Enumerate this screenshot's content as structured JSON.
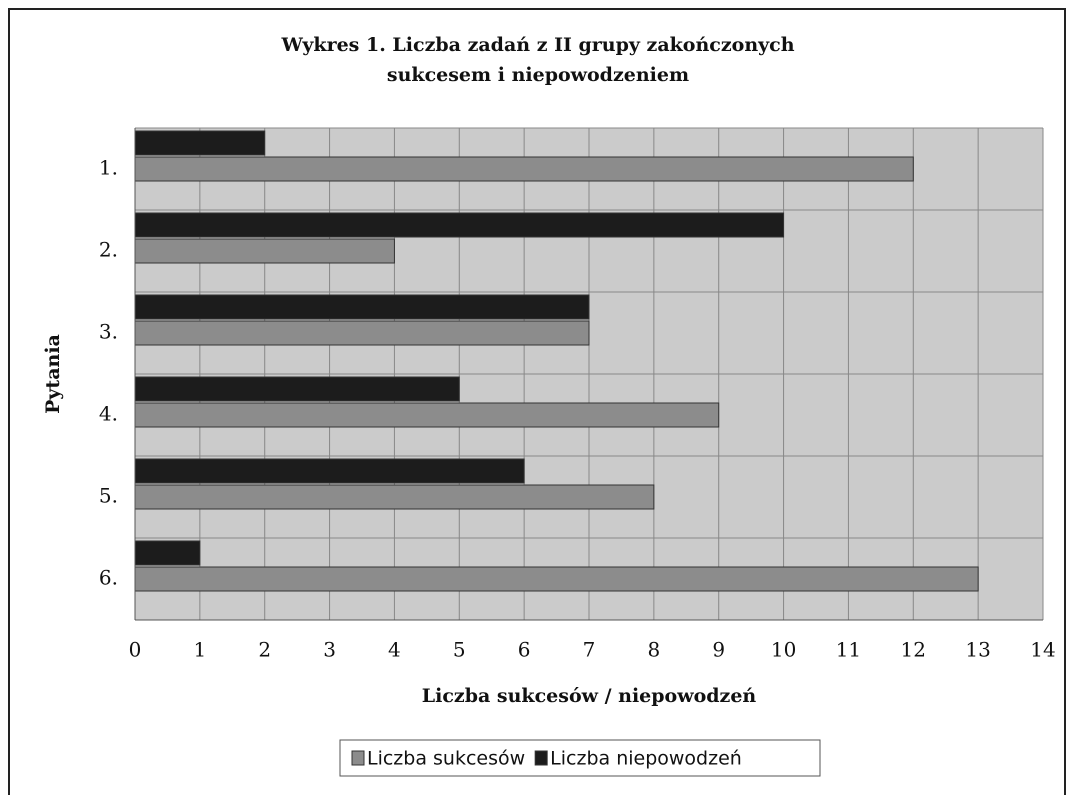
{
  "chart_data": {
    "type": "barh",
    "title": "Wykres 1. Liczba zadań z II grupy zakończonych sukcesem i niepowodzeniem",
    "xlabel": "Liczba sukcesów / niepowodzeń",
    "ylabel": "Pytania",
    "categories": [
      "1.",
      "2.",
      "3.",
      "4.",
      "5.",
      "6."
    ],
    "series": [
      {
        "name": "Liczba sukcesów",
        "color": "#8c8c8c",
        "values": [
          12,
          4,
          7,
          9,
          8,
          13
        ]
      },
      {
        "name": "Liczba niepowodzeń",
        "color": "#1c1c1c",
        "values": [
          2,
          10,
          7,
          5,
          6,
          1
        ]
      }
    ],
    "xlim": [
      0,
      14
    ],
    "xticks": [
      0,
      1,
      2,
      3,
      4,
      5,
      6,
      7,
      8,
      9,
      10,
      11,
      12,
      13,
      14
    ],
    "grid": true,
    "legend": "bottom"
  }
}
